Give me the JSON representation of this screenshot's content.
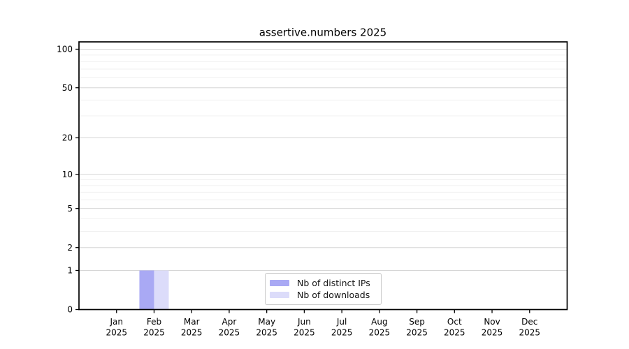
{
  "chart_data": {
    "type": "bar",
    "title": "assertive.numbers 2025",
    "categories": [
      {
        "month": "Jan",
        "year": "2025"
      },
      {
        "month": "Feb",
        "year": "2025"
      },
      {
        "month": "Mar",
        "year": "2025"
      },
      {
        "month": "Apr",
        "year": "2025"
      },
      {
        "month": "May",
        "year": "2025"
      },
      {
        "month": "Jun",
        "year": "2025"
      },
      {
        "month": "Jul",
        "year": "2025"
      },
      {
        "month": "Aug",
        "year": "2025"
      },
      {
        "month": "Sep",
        "year": "2025"
      },
      {
        "month": "Oct",
        "year": "2025"
      },
      {
        "month": "Nov",
        "year": "2025"
      },
      {
        "month": "Dec",
        "year": "2025"
      }
    ],
    "series": [
      {
        "name": "Nb of distinct IPs",
        "color": "#a9a9f4",
        "values": [
          0,
          1,
          0,
          0,
          0,
          0,
          0,
          0,
          0,
          0,
          0,
          0
        ]
      },
      {
        "name": "Nb of downloads",
        "color": "#dcdcfa",
        "values": [
          0,
          1,
          0,
          0,
          0,
          0,
          0,
          0,
          0,
          0,
          0,
          0
        ]
      }
    ],
    "xlabel": "",
    "ylabel": "",
    "yscale": "log1p",
    "ylim": [
      0,
      114
    ],
    "yticks": [
      0,
      1,
      2,
      5,
      10,
      20,
      50,
      100
    ],
    "y_minor_gridlines": [
      3,
      4,
      6,
      7,
      8,
      9,
      30,
      40,
      60,
      70,
      80,
      90
    ],
    "grid": true,
    "legend_position": "lower center"
  },
  "colors": {
    "major_grid": "#d6d6d6",
    "minor_grid": "#f0f0f0",
    "frame": "#000000",
    "tick_text": "#000000",
    "background": "#ffffff"
  }
}
